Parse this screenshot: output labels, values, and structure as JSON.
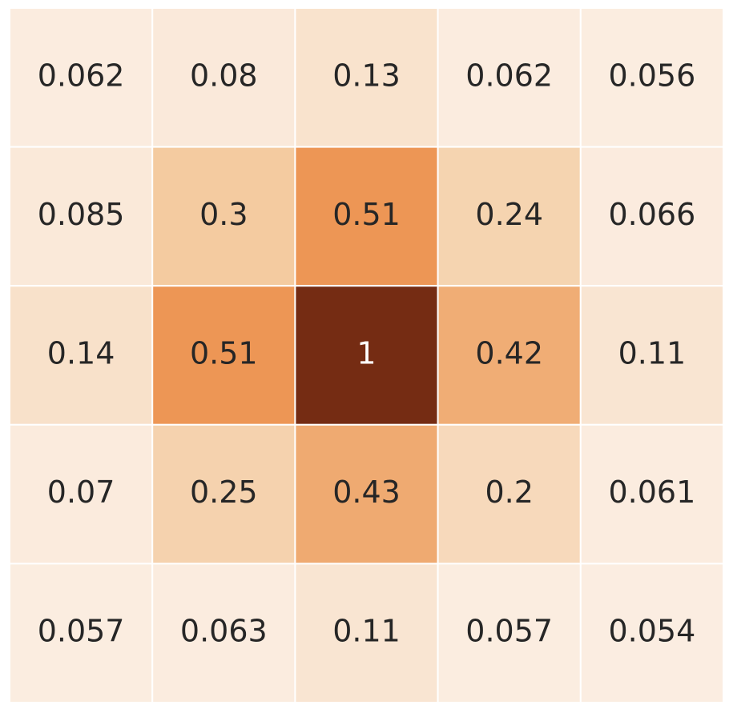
{
  "chart_data": {
    "type": "heatmap",
    "values": [
      [
        0.062,
        0.08,
        0.13,
        0.062,
        0.056
      ],
      [
        0.085,
        0.3,
        0.51,
        0.24,
        0.066
      ],
      [
        0.14,
        0.51,
        1,
        0.42,
        0.11
      ],
      [
        0.07,
        0.25,
        0.43,
        0.2,
        0.061
      ],
      [
        0.057,
        0.063,
        0.11,
        0.057,
        0.054
      ]
    ],
    "colors": [
      "#fbede1",
      "#f4cda3",
      "#ec924f",
      "#c05a22",
      "#752c13"
    ]
  }
}
